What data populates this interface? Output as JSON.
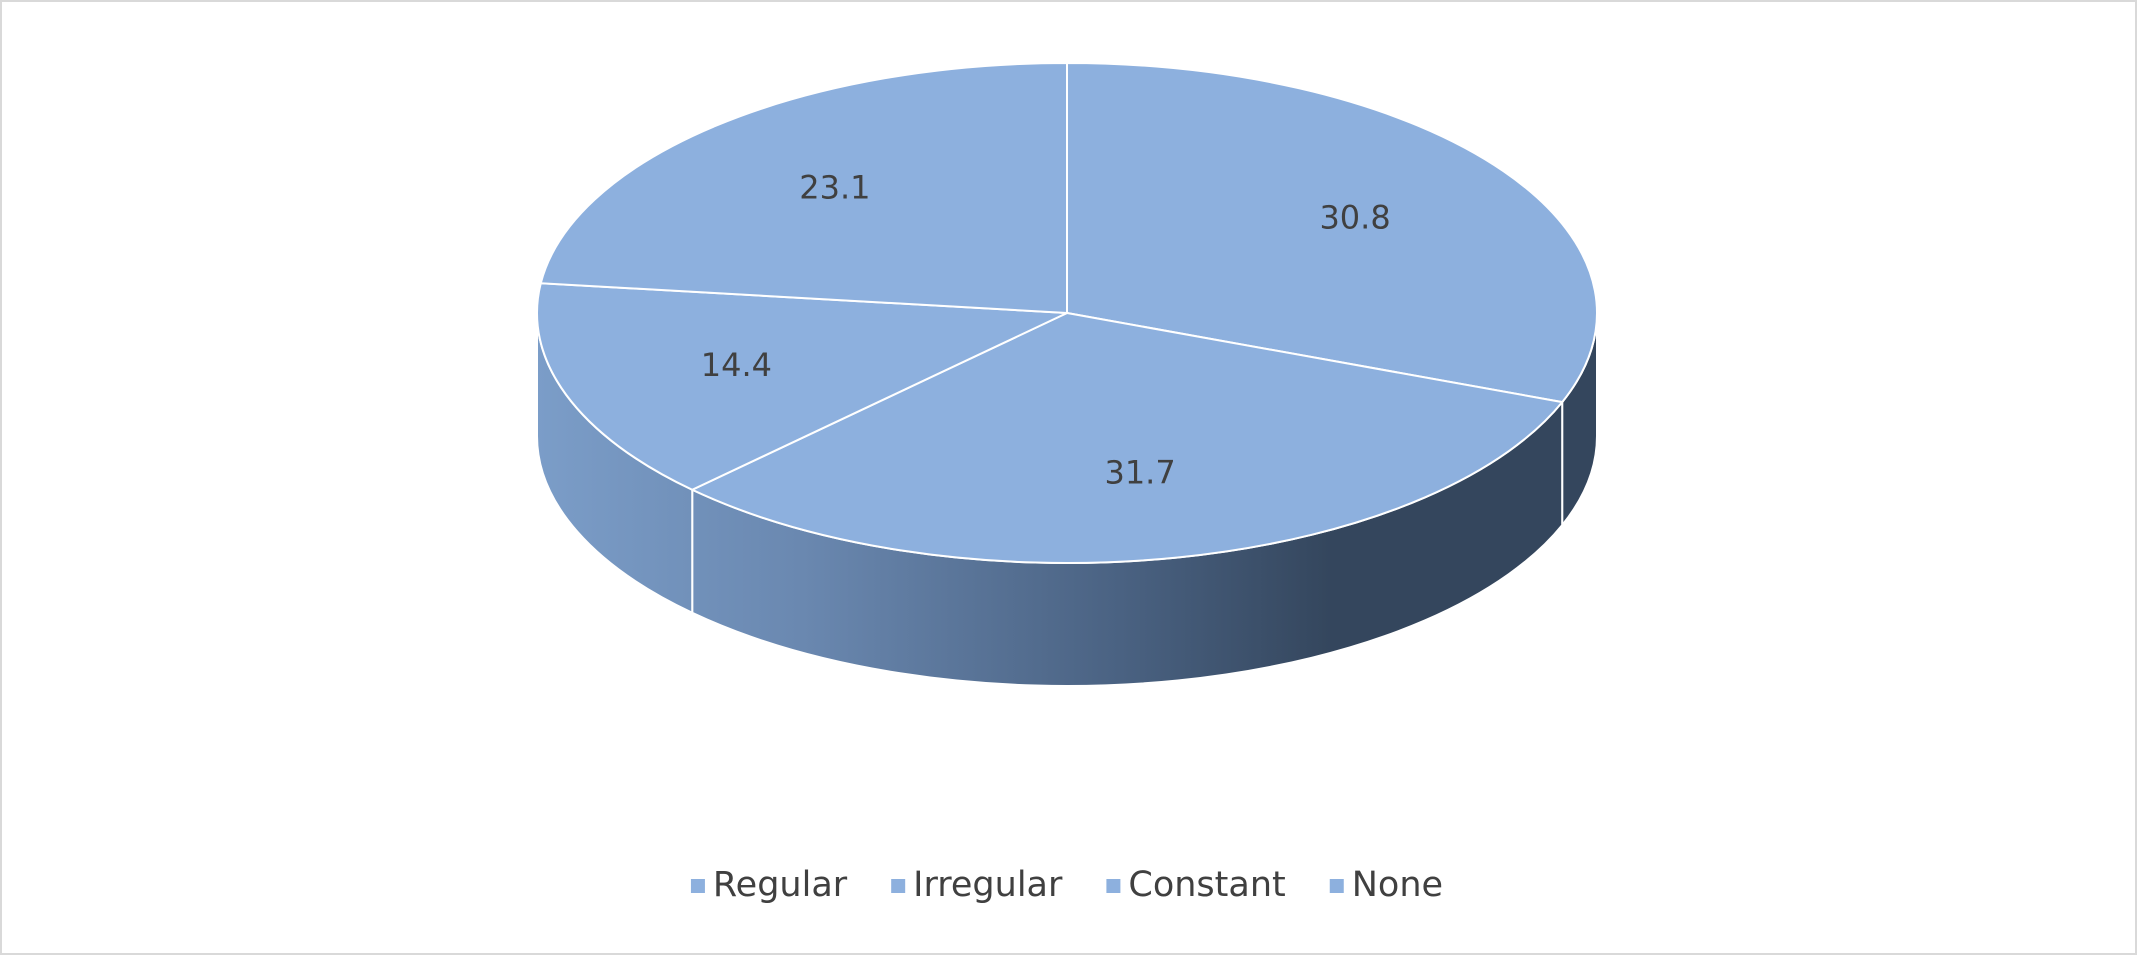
{
  "chart_data": {
    "type": "pie3d",
    "categories": [
      "Regular",
      "Irregular",
      "Constant",
      "None"
    ],
    "values": [
      30.8,
      31.7,
      14.4,
      23.1
    ],
    "color": "#8db0de",
    "legend": "bottom"
  }
}
